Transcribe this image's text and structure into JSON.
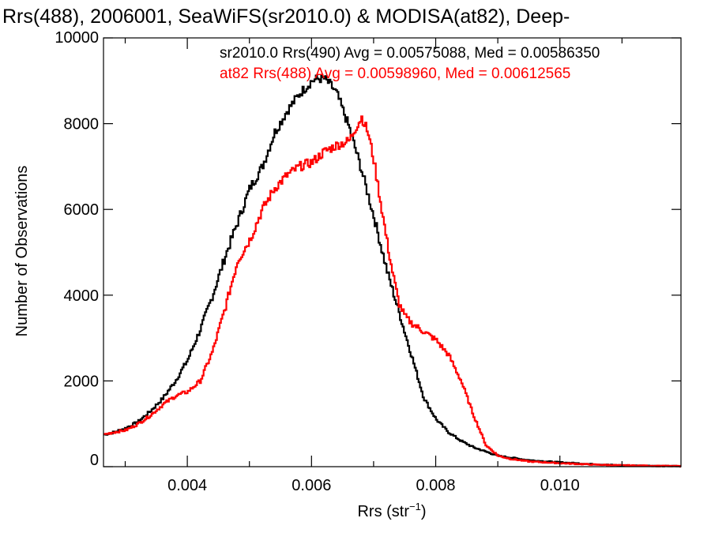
{
  "chart_data": {
    "type": "line",
    "step": true,
    "title": "Rrs(488), 2006001, SeaWiFS(sr2010.0) & MODISA(at82), Deep-",
    "xlabel_main": "Rrs (str",
    "xlabel_sup": "−1",
    "xlabel_close": ")",
    "ylabel": "Number of Observations",
    "xlim": [
      0.00265,
      0.01195
    ],
    "ylim": [
      0,
      10000
    ],
    "xticks": [
      0.004,
      0.006,
      0.008,
      0.01
    ],
    "xtick_labels": [
      "0.004",
      "0.006",
      "0.008",
      "0.010"
    ],
    "yticks": [
      0,
      2000,
      4000,
      6000,
      8000,
      10000
    ],
    "ytick_labels": [
      "0",
      "2000",
      "4000",
      "6000",
      "8000",
      "10000"
    ],
    "grid": false,
    "series": [
      {
        "color": "#000000",
        "stat_text": "sr2010.0 Rrs(490) Avg = 0.00575088, Med = 0.00586350",
        "x": [
          0.00265,
          0.0028,
          0.003,
          0.0032,
          0.0034,
          0.0036,
          0.0038,
          0.004,
          0.0042,
          0.0044,
          0.0046,
          0.0048,
          0.005,
          0.0052,
          0.0054,
          0.0056,
          0.0058,
          0.006,
          0.0061,
          0.0062,
          0.0063,
          0.0064,
          0.0065,
          0.0066,
          0.0067,
          0.0068,
          0.007,
          0.0072,
          0.0074,
          0.0076,
          0.0078,
          0.008,
          0.0082,
          0.0084,
          0.0086,
          0.0088,
          0.009,
          0.0095,
          0.01,
          0.0105,
          0.011,
          0.01195
        ],
        "y": [
          750,
          800,
          900,
          1050,
          1300,
          1600,
          2000,
          2500,
          3200,
          4000,
          4900,
          5700,
          6500,
          7000,
          7800,
          8300,
          8700,
          9000,
          9050,
          9050,
          8900,
          8700,
          8300,
          7900,
          7400,
          6900,
          5800,
          4600,
          3600,
          2600,
          1600,
          1100,
          800,
          600,
          450,
          350,
          250,
          150,
          100,
          60,
          30,
          10
        ]
      },
      {
        "color": "#ff0000",
        "stat_text": "at82 Rrs(488) Avg = 0.00598960, Med = 0.00612565",
        "x": [
          0.00265,
          0.0028,
          0.003,
          0.0032,
          0.0034,
          0.0036,
          0.0038,
          0.004,
          0.0042,
          0.0044,
          0.0046,
          0.0048,
          0.005,
          0.0052,
          0.0054,
          0.0056,
          0.0058,
          0.006,
          0.0062,
          0.0064,
          0.0066,
          0.0067,
          0.0068,
          0.0069,
          0.007,
          0.0071,
          0.0072,
          0.0073,
          0.0074,
          0.0075,
          0.0076,
          0.0078,
          0.008,
          0.0082,
          0.0084,
          0.0086,
          0.0088,
          0.009,
          0.0092,
          0.0095,
          0.01,
          0.0105,
          0.011,
          0.01195
        ],
        "y": [
          750,
          800,
          850,
          1000,
          1200,
          1450,
          1650,
          1750,
          2000,
          2700,
          3700,
          4800,
          5300,
          6000,
          6500,
          6800,
          7000,
          7100,
          7350,
          7500,
          7600,
          7900,
          8150,
          7800,
          7100,
          6200,
          5300,
          4500,
          3800,
          3500,
          3350,
          3150,
          2950,
          2600,
          2000,
          1200,
          500,
          250,
          180,
          120,
          80,
          50,
          30,
          10
        ]
      }
    ]
  }
}
